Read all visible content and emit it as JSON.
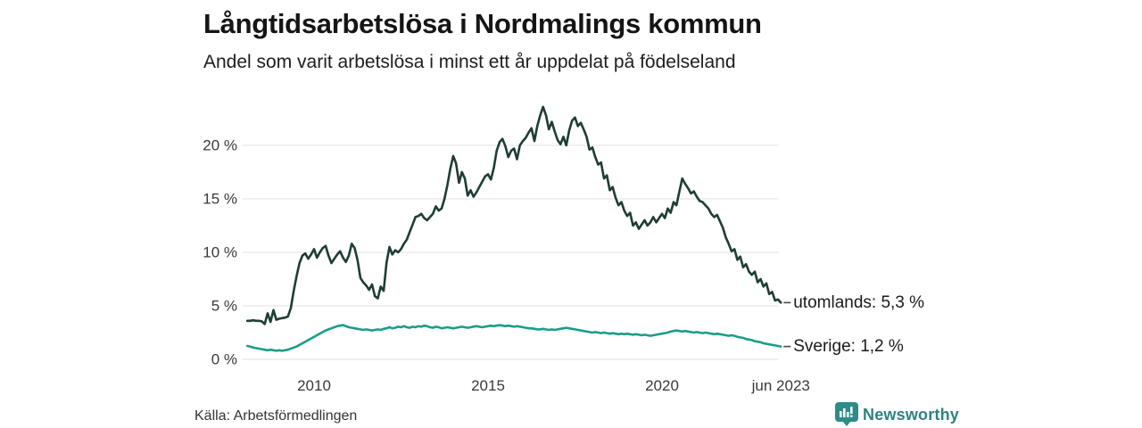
{
  "header": {
    "title": "Långtidsarbetslösa i Nordmalings kommun",
    "subtitle": "Andel som varit arbetslösa i minst ett år uppdelat på födelseland"
  },
  "footer": {
    "source": "Källa: Arbetsförmedlingen",
    "brand": "Newsworthy",
    "brand_icon": "newsworthy-bar-chart-bubble-icon",
    "brand_color": "#2e827f"
  },
  "chart_data": {
    "type": "line",
    "title": "Långtidsarbetslösa i Nordmalings kommun",
    "subtitle": "Andel som varit arbetslösa i minst ett år uppdelat på födelseland",
    "grid": true,
    "grid_color": "#e7e7ec",
    "x_range": [
      2008.083,
      2023.417
    ],
    "ylim": [
      0,
      24
    ],
    "y_axis": {
      "ticks": [
        {
          "value": 0,
          "label": "0 %"
        },
        {
          "value": 5,
          "label": "5 %"
        },
        {
          "value": 10,
          "label": "10 %"
        },
        {
          "value": 15,
          "label": "15 %"
        },
        {
          "value": 20,
          "label": "20 %"
        }
      ]
    },
    "x_axis": {
      "ticks": [
        {
          "value": 2010,
          "label": "2010"
        },
        {
          "value": 2015,
          "label": "2015"
        },
        {
          "value": 2020,
          "label": "2020"
        },
        {
          "value": 2023.417,
          "label": "jun 2023"
        }
      ]
    },
    "series": [
      {
        "name": "utomlands",
        "end_label": "utomlands: 5,3 %",
        "last_value_label": "5,3 %",
        "color": "#1e3d35",
        "start_t": 2008.0833,
        "step_months": 1,
        "values": [
          3.6,
          3.6,
          3.65,
          3.6,
          3.6,
          3.55,
          3.3,
          4.3,
          3.5,
          4.6,
          3.7,
          3.8,
          3.85,
          3.9,
          4.0,
          4.8,
          6.4,
          7.8,
          9.0,
          9.7,
          9.9,
          9.4,
          9.8,
          10.3,
          9.5,
          10.0,
          10.4,
          10.6,
          9.7,
          9.0,
          9.4,
          9.8,
          10.1,
          9.5,
          9.1,
          9.7,
          10.8,
          10.4,
          9.3,
          7.6,
          7.2,
          6.9,
          6.5,
          7.0,
          5.9,
          5.7,
          6.8,
          6.4,
          9.0,
          10.5,
          9.8,
          10.2,
          10.0,
          10.3,
          10.8,
          11.2,
          11.9,
          12.6,
          13.3,
          13.4,
          13.6,
          13.2,
          13.0,
          13.3,
          13.6,
          14.3,
          13.9,
          14.1,
          15.0,
          16.3,
          17.8,
          19.0,
          18.3,
          16.5,
          17.5,
          16.9,
          15.3,
          15.8,
          15.2,
          15.6,
          16.1,
          16.6,
          17.1,
          17.3,
          16.8,
          17.9,
          19.5,
          20.3,
          20.6,
          19.9,
          18.9,
          19.5,
          19.7,
          18.7,
          20.0,
          20.4,
          20.7,
          21.2,
          21.6,
          20.4,
          21.8,
          22.8,
          23.6,
          22.8,
          21.5,
          22.2,
          21.3,
          20.5,
          20.1,
          20.8,
          20.0,
          21.4,
          22.3,
          22.6,
          21.8,
          22.1,
          21.5,
          20.8,
          19.6,
          19.8,
          18.9,
          18.2,
          18.4,
          16.9,
          17.2,
          15.8,
          16.1,
          15.1,
          14.4,
          14.7,
          13.9,
          13.4,
          13.7,
          12.5,
          12.8,
          12.2,
          12.6,
          13.0,
          12.5,
          12.8,
          13.3,
          12.8,
          13.2,
          13.6,
          13.2,
          14.1,
          13.7,
          14.7,
          14.4,
          15.7,
          16.9,
          16.4,
          16.0,
          15.5,
          15.7,
          15.2,
          14.8,
          14.7,
          14.4,
          14.1,
          13.6,
          13.3,
          13.5,
          12.9,
          12.3,
          11.4,
          10.8,
          10.1,
          10.3,
          9.3,
          9.6,
          8.6,
          8.9,
          8.2,
          7.9,
          8.2,
          7.2,
          7.5,
          6.8,
          7.1,
          6.1,
          6.3,
          5.5,
          5.6,
          5.3
        ]
      },
      {
        "name": "Sverige",
        "end_label": "Sverige: 1,2 %",
        "last_value_label": "1,2 %",
        "color": "#1a9e89",
        "start_t": 2008.0833,
        "step_months": 1,
        "values": [
          1.25,
          1.2,
          1.1,
          1.05,
          1.0,
          0.95,
          0.9,
          0.85,
          0.9,
          0.85,
          0.8,
          0.85,
          0.8,
          0.85,
          0.9,
          1.0,
          1.1,
          1.2,
          1.35,
          1.5,
          1.65,
          1.8,
          1.95,
          2.1,
          2.25,
          2.4,
          2.55,
          2.7,
          2.8,
          2.9,
          3.0,
          3.1,
          3.15,
          3.2,
          3.1,
          3.0,
          2.95,
          2.9,
          2.85,
          2.8,
          2.75,
          2.8,
          2.75,
          2.7,
          2.75,
          2.8,
          2.75,
          2.85,
          2.9,
          3.0,
          2.9,
          2.95,
          3.05,
          3.0,
          3.1,
          3.0,
          2.95,
          3.05,
          3.0,
          3.1,
          3.05,
          3.15,
          3.1,
          3.0,
          2.95,
          3.05,
          3.0,
          2.9,
          2.95,
          3.0,
          2.95,
          2.9,
          2.95,
          3.0,
          3.05,
          3.0,
          2.95,
          3.0,
          3.05,
          3.1,
          3.05,
          3.0,
          3.05,
          3.1,
          3.15,
          3.1,
          3.15,
          3.2,
          3.15,
          3.1,
          3.15,
          3.1,
          3.05,
          3.1,
          3.05,
          3.0,
          2.95,
          2.9,
          2.9,
          2.85,
          2.8,
          2.8,
          2.85,
          2.8,
          2.75,
          2.8,
          2.75,
          2.8,
          2.85,
          2.9,
          2.95,
          2.9,
          2.85,
          2.8,
          2.75,
          2.7,
          2.65,
          2.6,
          2.55,
          2.5,
          2.55,
          2.5,
          2.45,
          2.5,
          2.45,
          2.4,
          2.45,
          2.4,
          2.35,
          2.4,
          2.35,
          2.4,
          2.35,
          2.3,
          2.35,
          2.3,
          2.25,
          2.3,
          2.25,
          2.2,
          2.25,
          2.3,
          2.35,
          2.4,
          2.45,
          2.5,
          2.6,
          2.65,
          2.7,
          2.65,
          2.6,
          2.65,
          2.6,
          2.55,
          2.5,
          2.55,
          2.5,
          2.45,
          2.5,
          2.45,
          2.4,
          2.35,
          2.4,
          2.35,
          2.3,
          2.25,
          2.2,
          2.25,
          2.2,
          2.1,
          2.05,
          2.0,
          1.9,
          1.85,
          1.8,
          1.7,
          1.65,
          1.6,
          1.5,
          1.45,
          1.4,
          1.35,
          1.3,
          1.25,
          1.2
        ]
      }
    ]
  }
}
